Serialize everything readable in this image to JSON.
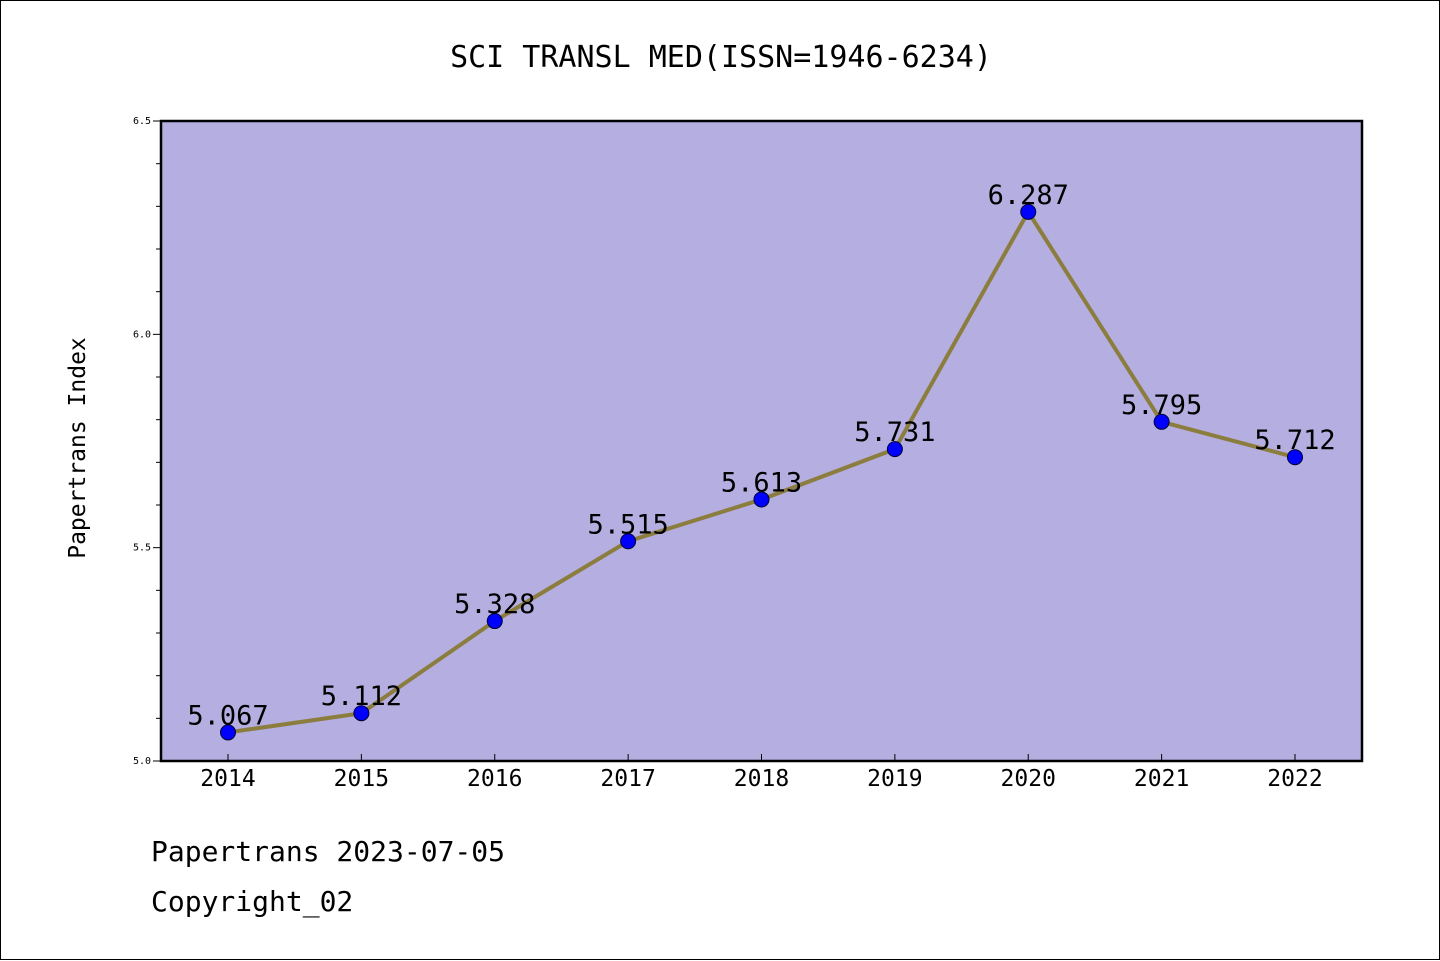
{
  "chart_data": {
    "type": "line",
    "title": "SCI TRANSL MED(ISSN=1946-6234)",
    "xlabel": "",
    "ylabel": "Papertrans Index",
    "categories": [
      "2014",
      "2015",
      "2016",
      "2017",
      "2018",
      "2019",
      "2020",
      "2021",
      "2022"
    ],
    "series": [
      {
        "values": [
          5.067,
          5.112,
          5.328,
          5.515,
          5.613,
          5.731,
          6.287,
          5.795,
          5.712
        ],
        "labels": [
          "5.067",
          "5.112",
          "5.328",
          "5.515",
          "5.613",
          "5.731",
          "6.287",
          "5.795",
          "5.712"
        ],
        "line_color": "#8b7d3e",
        "marker_color": "#0000ff"
      }
    ],
    "ylim": [
      5.0,
      6.5
    ],
    "yticks": [
      "5.0",
      "5.5",
      "6.0",
      "6.5"
    ],
    "plot_background": "#b5aee1",
    "grid": false,
    "legend": "none"
  },
  "footer": {
    "line1": "Papertrans 2023-07-05",
    "line2": "Copyright_02"
  }
}
